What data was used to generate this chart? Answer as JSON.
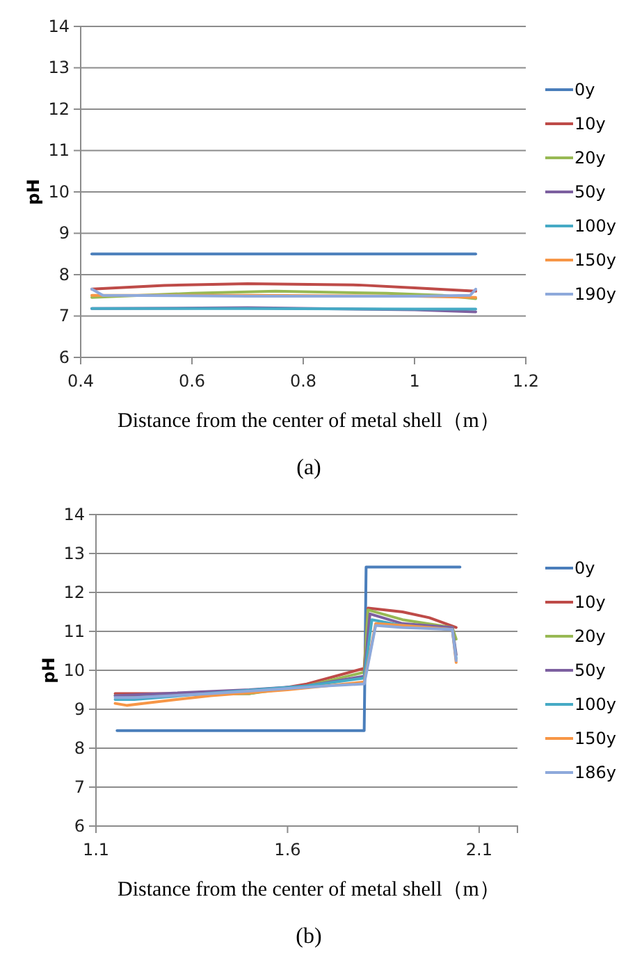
{
  "chart_data": [
    {
      "type": "line",
      "xlabel": "Distance from the center of metal shell（m）",
      "ylabel": "pH",
      "annotations": [
        "(a)"
      ],
      "xlim": [
        0.4,
        1.2
      ],
      "xticks": [
        0.4,
        0.6,
        0.8,
        1,
        1.2
      ],
      "ylim": [
        6,
        14
      ],
      "yticks": [
        6,
        7,
        8,
        9,
        10,
        11,
        12,
        13,
        14
      ],
      "grid": "y",
      "legend": "right",
      "marker": "none",
      "line_style": "solid",
      "series": [
        {
          "name": "0y",
          "color": "#4a7ebb",
          "x": [
            0.42,
            0.7,
            1.11
          ],
          "values": [
            8.5,
            8.5,
            8.5
          ]
        },
        {
          "name": "10y",
          "color": "#be4b48",
          "x": [
            0.42,
            0.55,
            0.7,
            0.9,
            1.0,
            1.11
          ],
          "values": [
            7.65,
            7.74,
            7.78,
            7.75,
            7.68,
            7.6
          ]
        },
        {
          "name": "20y",
          "color": "#98b954",
          "x": [
            0.42,
            0.6,
            0.75,
            0.95,
            1.05,
            1.11
          ],
          "values": [
            7.45,
            7.55,
            7.6,
            7.55,
            7.5,
            7.42
          ]
        },
        {
          "name": "50y",
          "color": "#7d60a0",
          "x": [
            0.42,
            0.7,
            1.0,
            1.11
          ],
          "values": [
            7.18,
            7.2,
            7.15,
            7.1
          ]
        },
        {
          "name": "100y",
          "color": "#46aac5",
          "x": [
            0.42,
            0.7,
            1.0,
            1.11
          ],
          "values": [
            7.18,
            7.18,
            7.17,
            7.17
          ]
        },
        {
          "name": "150y",
          "color": "#f79646",
          "x": [
            0.42,
            0.7,
            1.0,
            1.11
          ],
          "values": [
            7.5,
            7.5,
            7.48,
            7.45
          ]
        },
        {
          "name": "190y",
          "color": "#8ea9db",
          "x": [
            0.42,
            0.44,
            0.7,
            1.0,
            1.1,
            1.11
          ],
          "values": [
            7.65,
            7.5,
            7.48,
            7.48,
            7.5,
            7.65
          ]
        }
      ]
    },
    {
      "type": "line",
      "xlabel": "Distance from the center of  metal shell（m）",
      "ylabel": "pH",
      "annotations": [
        "(b)"
      ],
      "xlim": [
        1.1,
        2.2
      ],
      "xticks": [
        1.1,
        1.6,
        2.1
      ],
      "ylim": [
        6,
        14
      ],
      "yticks": [
        6,
        7,
        8,
        9,
        10,
        11,
        12,
        13,
        14
      ],
      "grid": "y",
      "legend": "right",
      "marker": "none",
      "line_style": "solid",
      "series": [
        {
          "name": "0y",
          "color": "#4a7ebb",
          "x": [
            1.155,
            1.5,
            1.8,
            1.805,
            1.9,
            2.05
          ],
          "values": [
            8.45,
            8.45,
            8.45,
            12.65,
            12.65,
            12.65
          ]
        },
        {
          "name": "10y",
          "color": "#be4b48",
          "x": [
            1.15,
            1.5,
            1.65,
            1.8,
            1.81,
            1.9,
            1.97,
            2.04
          ],
          "values": [
            9.4,
            9.4,
            9.65,
            10.05,
            11.6,
            11.5,
            11.35,
            11.1
          ]
        },
        {
          "name": "20y",
          "color": "#98b954",
          "x": [
            1.15,
            1.5,
            1.65,
            1.8,
            1.81,
            1.9,
            2.03,
            2.04
          ],
          "values": [
            9.35,
            9.4,
            9.6,
            9.95,
            11.55,
            11.3,
            11.1,
            10.8
          ]
        },
        {
          "name": "50y",
          "color": "#7d60a0",
          "x": [
            1.15,
            1.5,
            1.65,
            1.8,
            1.815,
            1.9,
            2.03,
            2.04
          ],
          "values": [
            9.35,
            9.5,
            9.6,
            9.85,
            11.45,
            11.2,
            11.1,
            10.4
          ]
        },
        {
          "name": "100y",
          "color": "#46aac5",
          "x": [
            1.15,
            1.2,
            1.45,
            1.65,
            1.8,
            1.82,
            1.9,
            2.03,
            2.04
          ],
          "values": [
            9.25,
            9.25,
            9.45,
            9.6,
            9.8,
            11.3,
            11.15,
            11.05,
            10.3
          ]
        },
        {
          "name": "150y",
          "color": "#f79646",
          "x": [
            1.15,
            1.18,
            1.4,
            1.6,
            1.8,
            1.83,
            1.9,
            2.03,
            2.04
          ],
          "values": [
            9.15,
            9.1,
            9.35,
            9.5,
            9.7,
            11.2,
            11.15,
            11.05,
            10.2
          ]
        },
        {
          "name": "186y",
          "color": "#8ea9db",
          "x": [
            1.15,
            1.2,
            1.4,
            1.7,
            1.8,
            1.83,
            1.9,
            2.03,
            2.04
          ],
          "values": [
            9.3,
            9.3,
            9.4,
            9.6,
            9.65,
            11.15,
            11.1,
            11.05,
            10.25
          ]
        }
      ]
    }
  ]
}
